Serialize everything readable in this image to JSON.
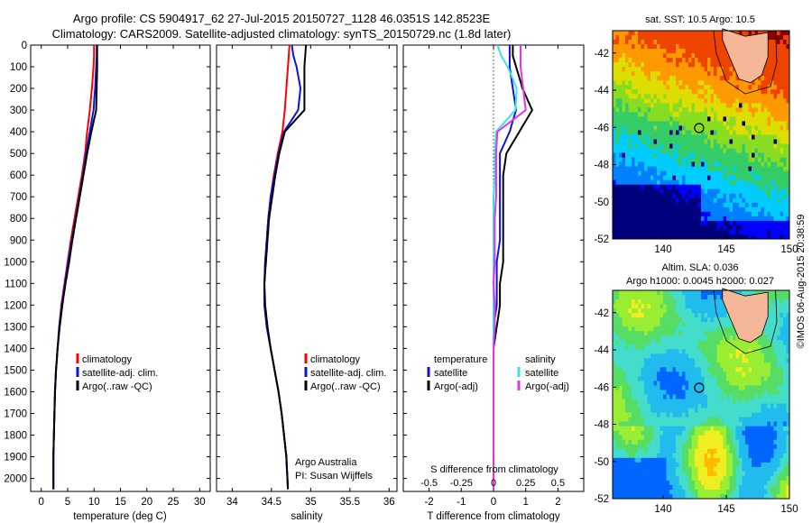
{
  "title": {
    "line1": "Argo profile: CS 5904917_62 27-Jul-2015 20150727_1128 46.0351S 142.8523E",
    "line2": "Climatology: CARS2009. Satellite-adjusted climatology: synTS_20150729.nc (1.8d later)"
  },
  "colors": {
    "climatology": "#ff0000",
    "satellite": "#1010e0",
    "argo": "#000000",
    "sat_salinity": "#33e6e6",
    "argo_adj_salinity": "#e633e6",
    "land": "#f4b898"
  },
  "panels": {
    "temperature": {
      "xlabel": "temperature (deg C)",
      "xticks": [
        "0",
        "5",
        "10",
        "15",
        "20",
        "25",
        "30"
      ],
      "legend": [
        "climatology",
        "satellite-adj. clim.",
        "Argo(..raw -QC)"
      ]
    },
    "salinity": {
      "xlabel": "salinity",
      "xticks": [
        "34",
        "34.5",
        "35",
        "35.5",
        "36"
      ],
      "legend": [
        "climatology",
        "satellite-adj. clim.",
        "Argo(..raw -QC)"
      ],
      "note1": "Argo Australia",
      "note2": "PI: Susan Wijffels"
    },
    "difference": {
      "xlabel": "T difference from climatology",
      "top_axis_label": "S difference from climatology",
      "xticks": [
        "-2",
        "-1",
        "0",
        "1",
        "2"
      ],
      "s_ticks": [
        "-0.5",
        "-0.25",
        "0",
        "0.25",
        "0.5"
      ],
      "legend_t_header": "temperature",
      "legend_t": [
        "satellite",
        "Argo(-adj)"
      ],
      "legend_s_header": "salinity",
      "legend_s": [
        "satellite",
        "Argo(-adj)"
      ]
    },
    "map_sst": {
      "title": "sat. SST: 10.5  Argo: 10.5",
      "yticks": [
        "-42",
        "-44",
        "-46",
        "-48",
        "-50",
        "-52"
      ],
      "xticks": [
        "140",
        "145",
        "150"
      ]
    },
    "map_sla": {
      "title1": "Altim. SLA: 0.036",
      "title2": "Argo h1000: 0.0045 h2000: 0.027",
      "yticks": [
        "-42",
        "-44",
        "-46",
        "-48",
        "-50",
        "-52"
      ],
      "xticks": [
        "140",
        "145",
        "150"
      ]
    }
  },
  "yticks": [
    "0",
    "100",
    "200",
    "300",
    "400",
    "500",
    "600",
    "700",
    "800",
    "900",
    "1000",
    "1100",
    "1200",
    "1300",
    "1400",
    "1500",
    "1600",
    "1700",
    "1800",
    "1900",
    "2000"
  ],
  "side_stamp": "©IMOS 06-Aug-2015 20:38:59",
  "argo_location": {
    "lon": 142.8523,
    "lat": -46.0351
  },
  "chart_data": [
    {
      "type": "line",
      "name": "temperature-profile",
      "xlabel": "temperature (deg C)",
      "ylabel": "",
      "xlim": [
        -2,
        32
      ],
      "ylim": [
        2060,
        0
      ],
      "series": [
        {
          "name": "climatology",
          "x": [
            10.0,
            10.0,
            9.9,
            9.6,
            9.2,
            8.7,
            8.3,
            7.7,
            7.0,
            6.3,
            5.6,
            5.0,
            4.4,
            3.8,
            3.4,
            3.1,
            2.8,
            2.6,
            2.5,
            2.4,
            2.3,
            2.3
          ],
          "y": [
            0,
            50,
            100,
            200,
            300,
            400,
            500,
            600,
            700,
            800,
            900,
            1000,
            1100,
            1200,
            1300,
            1400,
            1500,
            1600,
            1700,
            1800,
            1900,
            2050
          ]
        },
        {
          "name": "satellite-adj. clim.",
          "x": [
            10.5,
            10.5,
            10.4,
            10.2,
            9.9,
            9.2,
            8.5,
            7.9,
            7.2,
            6.5,
            5.8,
            5.1,
            4.5,
            3.9,
            3.4,
            3.1,
            2.8,
            2.6,
            2.5,
            2.4,
            2.3,
            2.3
          ],
          "y": [
            0,
            50,
            100,
            200,
            300,
            400,
            500,
            600,
            700,
            800,
            900,
            1000,
            1100,
            1200,
            1300,
            1400,
            1500,
            1600,
            1700,
            1800,
            1900,
            2050
          ]
        },
        {
          "name": "Argo(..raw -QC)",
          "x": [
            10.6,
            10.6,
            10.6,
            10.5,
            10.4,
            9.5,
            8.7,
            8.0,
            7.3,
            6.6,
            5.9,
            5.3,
            4.6,
            4.0,
            3.5,
            3.1,
            2.8,
            2.6,
            2.5,
            2.4,
            2.3,
            2.3
          ],
          "y": [
            0,
            50,
            100,
            200,
            300,
            400,
            500,
            600,
            700,
            800,
            900,
            1000,
            1100,
            1200,
            1300,
            1400,
            1500,
            1600,
            1700,
            1800,
            1900,
            2050
          ]
        }
      ]
    },
    {
      "type": "line",
      "name": "salinity-profile",
      "xlabel": "salinity",
      "ylabel": "",
      "xlim": [
        33.8,
        36.1
      ],
      "ylim": [
        2060,
        0
      ],
      "series": [
        {
          "name": "climatology",
          "x": [
            34.73,
            34.72,
            34.71,
            34.69,
            34.67,
            34.64,
            34.58,
            34.53,
            34.49,
            34.46,
            34.44,
            34.42,
            34.41,
            34.41,
            34.44,
            34.49,
            34.54,
            34.59,
            34.63,
            34.66,
            34.69,
            34.71
          ],
          "y": [
            0,
            50,
            100,
            200,
            300,
            400,
            500,
            600,
            700,
            800,
            900,
            1000,
            1100,
            1200,
            1300,
            1400,
            1500,
            1600,
            1700,
            1800,
            1900,
            2050
          ]
        },
        {
          "name": "satellite-adj. clim.",
          "x": [
            34.76,
            34.78,
            34.82,
            34.87,
            34.84,
            34.66,
            34.59,
            34.54,
            34.49,
            34.46,
            34.44,
            34.42,
            34.41,
            34.41,
            34.44,
            34.49,
            34.54,
            34.59,
            34.63,
            34.66,
            34.69,
            34.71
          ],
          "y": [
            0,
            50,
            100,
            200,
            300,
            400,
            500,
            600,
            700,
            800,
            900,
            1000,
            1100,
            1200,
            1300,
            1400,
            1500,
            1600,
            1700,
            1800,
            1900,
            2050
          ]
        },
        {
          "name": "Argo(..raw -QC)",
          "x": [
            34.94,
            34.93,
            34.92,
            34.92,
            34.92,
            34.67,
            34.6,
            34.55,
            34.51,
            34.47,
            34.45,
            34.43,
            34.41,
            34.42,
            34.45,
            34.49,
            34.54,
            34.59,
            34.63,
            34.66,
            34.69,
            34.71
          ],
          "y": [
            0,
            50,
            100,
            200,
            300,
            400,
            500,
            600,
            700,
            800,
            900,
            1000,
            1100,
            1200,
            1300,
            1400,
            1500,
            1600,
            1700,
            1800,
            1900,
            2050
          ]
        }
      ]
    },
    {
      "type": "line",
      "name": "difference-from-climatology",
      "xlabel": "T difference from climatology",
      "x2label": "S difference from climatology",
      "xlim": [
        -2.8,
        2.8
      ],
      "x2lim": [
        -0.7,
        0.7
      ],
      "ylim": [
        2060,
        0
      ],
      "series": [
        {
          "name": "temperature satellite",
          "axis": "T",
          "x": [
            0.5,
            0.5,
            0.5,
            0.6,
            0.7,
            0.5,
            0.2,
            0.2,
            0.2,
            0.2,
            0.2,
            0.1,
            0.1,
            0.1,
            0.0,
            0.0,
            0.0,
            0.0,
            0.0,
            0.0,
            0.0,
            0.0
          ],
          "y": [
            0,
            50,
            100,
            200,
            300,
            400,
            500,
            600,
            700,
            800,
            900,
            1000,
            1100,
            1200,
            1300,
            1400,
            1500,
            1600,
            1700,
            1800,
            1900,
            2050
          ]
        },
        {
          "name": "temperature Argo(-adj)",
          "axis": "T",
          "x": [
            0.6,
            0.6,
            0.7,
            0.9,
            1.2,
            0.8,
            0.4,
            0.3,
            0.3,
            0.3,
            0.3,
            0.3,
            0.2,
            0.2,
            0.1,
            0.0,
            0.0,
            0.0,
            0.0,
            0.0,
            0.0,
            0.0
          ],
          "y": [
            0,
            50,
            100,
            200,
            300,
            400,
            500,
            600,
            700,
            800,
            900,
            1000,
            1100,
            1200,
            1300,
            1400,
            1500,
            1600,
            1700,
            1800,
            1900,
            2050
          ]
        },
        {
          "name": "salinity satellite",
          "axis": "S",
          "x": [
            0.03,
            0.06,
            0.11,
            0.18,
            0.17,
            0.02,
            0.01,
            0.01,
            0.0,
            0.0,
            0.0,
            0.0,
            0.0,
            0.0,
            0.0,
            0.0,
            0.0,
            0.0,
            0.0,
            0.0,
            0.0,
            0.0
          ],
          "y": [
            0,
            50,
            100,
            200,
            300,
            400,
            500,
            600,
            700,
            800,
            900,
            1000,
            1100,
            1200,
            1300,
            1400,
            1500,
            1600,
            1700,
            1800,
            1900,
            2050
          ]
        },
        {
          "name": "salinity Argo(-adj)",
          "axis": "S",
          "x": [
            0.21,
            0.21,
            0.21,
            0.23,
            0.25,
            0.03,
            0.02,
            0.02,
            0.02,
            0.01,
            0.01,
            0.01,
            0.0,
            0.01,
            0.01,
            0.0,
            0.0,
            0.0,
            0.0,
            0.0,
            0.0,
            0.0
          ],
          "y": [
            0,
            50,
            100,
            200,
            300,
            400,
            500,
            600,
            700,
            800,
            900,
            1000,
            1100,
            1200,
            1300,
            1400,
            1500,
            1600,
            1700,
            1800,
            1900,
            2050
          ]
        }
      ]
    },
    {
      "type": "heatmap",
      "name": "satellite-sst-map",
      "title": "sat. SST: 10.5  Argo: 10.5",
      "xlim": [
        136,
        150
      ],
      "ylim": [
        -52,
        -40.8
      ]
    },
    {
      "type": "heatmap",
      "name": "altimeter-sla-map",
      "title": "Altim. SLA: 0.036",
      "xlim": [
        136,
        150
      ],
      "ylim": [
        -52,
        -40.8
      ]
    }
  ]
}
